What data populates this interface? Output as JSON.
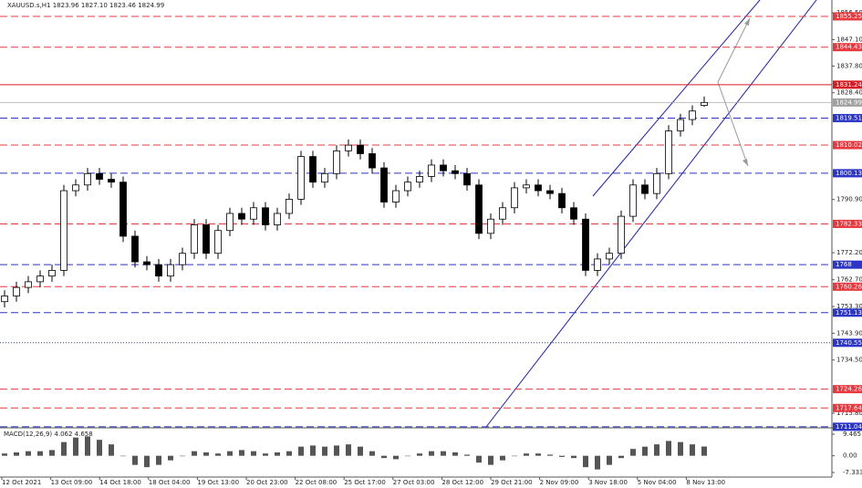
{
  "chart_data": {
    "type": "candlestick",
    "title": "XAUUSD.s,H1  1823.96 1827.10 1823.46 1824.99",
    "open": [
      1755,
      1757,
      1760,
      1762,
      1764,
      1766,
      1794,
      1796,
      1800,
      1798,
      1797,
      1778,
      1769,
      1768,
      1764,
      1768,
      1772,
      1782,
      1772,
      1780,
      1786,
      1784,
      1788,
      1782,
      1786,
      1791,
      1806,
      1797,
      1800,
      1808,
      1810,
      1807,
      1802,
      1790,
      1794,
      1797,
      1799,
      1803,
      1801,
      1800,
      1796,
      1779,
      1784,
      1788,
      1795,
      1796,
      1794,
      1793,
      1788,
      1784,
      1766,
      1770,
      1772,
      1785,
      1796,
      1793,
      1800,
      1815,
      1819,
      1823.96
    ],
    "high": [
      1759,
      1762,
      1764,
      1766,
      1768,
      1796,
      1798,
      1802,
      1802,
      1800,
      1799,
      1780,
      1771,
      1770,
      1770,
      1774,
      1784,
      1784,
      1782,
      1788,
      1788,
      1790,
      1790,
      1788,
      1793,
      1808,
      1808,
      1802,
      1810,
      1812,
      1812,
      1809,
      1804,
      1796,
      1799,
      1801,
      1805,
      1805,
      1803,
      1802,
      1798,
      1786,
      1790,
      1797,
      1798,
      1798,
      1796,
      1795,
      1790,
      1786,
      1772,
      1774,
      1787,
      1798,
      1798,
      1802,
      1817,
      1821,
      1824,
      1827.1
    ],
    "low": [
      1753,
      1755,
      1758,
      1760,
      1762,
      1764,
      1792,
      1794,
      1796,
      1795,
      1776,
      1767,
      1766,
      1762,
      1762,
      1766,
      1770,
      1770,
      1770,
      1778,
      1782,
      1782,
      1780,
      1780,
      1784,
      1789,
      1795,
      1795,
      1798,
      1806,
      1805,
      1800,
      1788,
      1788,
      1792,
      1795,
      1797,
      1799,
      1798,
      1794,
      1777,
      1777,
      1782,
      1786,
      1793,
      1792,
      1791,
      1786,
      1782,
      1764,
      1764,
      1768,
      1770,
      1783,
      1791,
      1791,
      1798,
      1813,
      1817,
      1823.46
    ],
    "close": [
      1757,
      1760,
      1762,
      1764,
      1766,
      1794,
      1796,
      1800,
      1798,
      1797,
      1778,
      1769,
      1768,
      1764,
      1768,
      1772,
      1782,
      1772,
      1780,
      1786,
      1784,
      1788,
      1782,
      1786,
      1791,
      1806,
      1797,
      1800,
      1808,
      1810,
      1807,
      1802,
      1790,
      1794,
      1797,
      1799,
      1803,
      1801,
      1800,
      1796,
      1779,
      1784,
      1788,
      1795,
      1796,
      1794,
      1793,
      1788,
      1784,
      1766,
      1770,
      1772,
      1785,
      1796,
      1793,
      1800,
      1815,
      1819,
      1822,
      1824.99
    ],
    "x_labels": [
      "12 Oct 2021",
      "13 Oct 09:00",
      "14 Oct 18:00",
      "18 Oct 04:00",
      "19 Oct 13:00",
      "20 Oct 23:00",
      "22 Oct 08:00",
      "25 Oct 17:00",
      "27 Oct 03:00",
      "28 Oct 12:00",
      "29 Oct 21:00",
      "2 Nov 09:00",
      "3 Nov 18:00",
      "5 Nov 04:00",
      "8 Nov 13:00"
    ],
    "ylim": [
      1711,
      1861
    ],
    "yticks": [
      {
        "value": 1856.5,
        "label": "1856.50"
      },
      {
        "value": 1847.1,
        "label": "1847.10"
      },
      {
        "value": 1837.8,
        "label": "1837.80"
      },
      {
        "value": 1828.4,
        "label": "1828.40"
      },
      {
        "value": 1790.9,
        "label": "1790.90"
      },
      {
        "value": 1772.2,
        "label": "1772.20"
      },
      {
        "value": 1762.7,
        "label": "1762.70"
      },
      {
        "value": 1753.3,
        "label": "1753.30"
      },
      {
        "value": 1743.9,
        "label": "1743.90"
      },
      {
        "value": 1734.5,
        "label": "1734.50"
      },
      {
        "value": 1715.8,
        "label": "1715.80"
      }
    ],
    "levels": [
      {
        "value": 1855.25,
        "color": "#e8383d",
        "style": "dashed"
      },
      {
        "value": 1844.43,
        "color": "#e8383d",
        "style": "dashed"
      },
      {
        "value": 1831.24,
        "color": "#d81c24",
        "style": "solid"
      },
      {
        "value": 1824.99,
        "color": "#a0a0a0",
        "style": "thin"
      },
      {
        "value": 1819.51,
        "color": "#2b35c8",
        "style": "dashed"
      },
      {
        "value": 1810.02,
        "color": "#e8383d",
        "style": "dashed"
      },
      {
        "value": 1800.13,
        "color": "#2b35c8",
        "style": "dashed"
      },
      {
        "value": 1782.33,
        "color": "#e8383d",
        "style": "dashed"
      },
      {
        "value": 1768.0,
        "color": "#2b35c8",
        "style": "dashed"
      },
      {
        "value": 1760.26,
        "color": "#e8383d",
        "style": "dashed"
      },
      {
        "value": 1751.13,
        "color": "#2b35c8",
        "style": "dashed"
      },
      {
        "value": 1740.55,
        "color": "#2b35c8",
        "style": "dotted"
      },
      {
        "value": 1724.26,
        "color": "#e8383d",
        "style": "dashed"
      },
      {
        "value": 1717.64,
        "color": "#e8383d",
        "style": "dashed"
      },
      {
        "value": 1711.04,
        "color": "#2b35c8",
        "style": "dashed"
      }
    ],
    "macd": {
      "label": "MACD(12,26,9) 4.062 4.658",
      "values": [
        1,
        1.5,
        2,
        2,
        2.5,
        6,
        8,
        8.5,
        7,
        5,
        0,
        -4,
        -5,
        -4,
        -2,
        0,
        2,
        1.5,
        1,
        2,
        2.5,
        2,
        1,
        1.5,
        2,
        4,
        4.5,
        4,
        4.5,
        5,
        4,
        2,
        -1,
        -1.5,
        0,
        1,
        2,
        2,
        1.5,
        0.5,
        -3,
        -4,
        -2,
        0,
        1,
        1,
        0.5,
        -0.5,
        -1,
        -5,
        -6,
        -4,
        -1,
        3,
        4,
        5,
        6.5,
        6,
        5,
        4.062
      ],
      "ylim": [
        -7.333,
        9.465
      ],
      "yticks": [
        9.465,
        {
          "value": 0,
          "label": "0.00"
        },
        -7.333
      ],
      "color": "#555555"
    }
  }
}
